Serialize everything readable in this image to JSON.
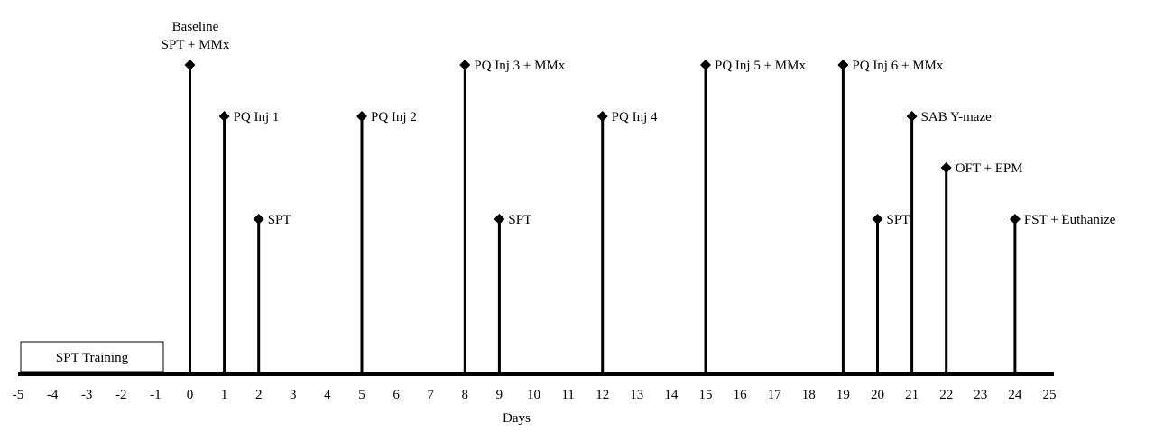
{
  "chart_data": {
    "type": "timeline",
    "xlabel": "Days",
    "xlim": [
      -5,
      25
    ],
    "ticks": [
      -5,
      -4,
      -3,
      -2,
      -1,
      0,
      1,
      2,
      3,
      4,
      5,
      6,
      7,
      8,
      9,
      10,
      11,
      12,
      13,
      14,
      15,
      16,
      17,
      18,
      19,
      20,
      21,
      22,
      23,
      24,
      25
    ],
    "training_period": {
      "label": "SPT Training",
      "start": -5,
      "end": -1
    },
    "events": [
      {
        "day": 0,
        "level": 5,
        "label": [
          "Baseline",
          "SPT + MMx"
        ]
      },
      {
        "day": 1,
        "level": 4,
        "label": [
          "PQ Inj 1"
        ]
      },
      {
        "day": 2,
        "level": 3,
        "label": [
          "SPT"
        ]
      },
      {
        "day": 5,
        "level": 4,
        "label": [
          "PQ Inj 2"
        ]
      },
      {
        "day": 8,
        "level": 5,
        "label": [
          "PQ Inj 3 + MMx"
        ]
      },
      {
        "day": 9,
        "level": 3,
        "label": [
          "SPT"
        ]
      },
      {
        "day": 12,
        "level": 4,
        "label": [
          "PQ Inj 4"
        ]
      },
      {
        "day": 15,
        "level": 5,
        "label": [
          "PQ Inj 5 + MMx"
        ]
      },
      {
        "day": 19,
        "level": 5,
        "label": [
          "PQ Inj 6 + MMx"
        ]
      },
      {
        "day": 20,
        "level": 3,
        "label": [
          "SPT"
        ]
      },
      {
        "day": 21,
        "level": 4,
        "label": [
          "SAB Y-maze"
        ]
      },
      {
        "day": 22,
        "level": 3.5,
        "label": [
          "OFT + EPM"
        ]
      },
      {
        "day": 24,
        "level": 3,
        "label": [
          "FST + Euthanize"
        ]
      }
    ]
  }
}
